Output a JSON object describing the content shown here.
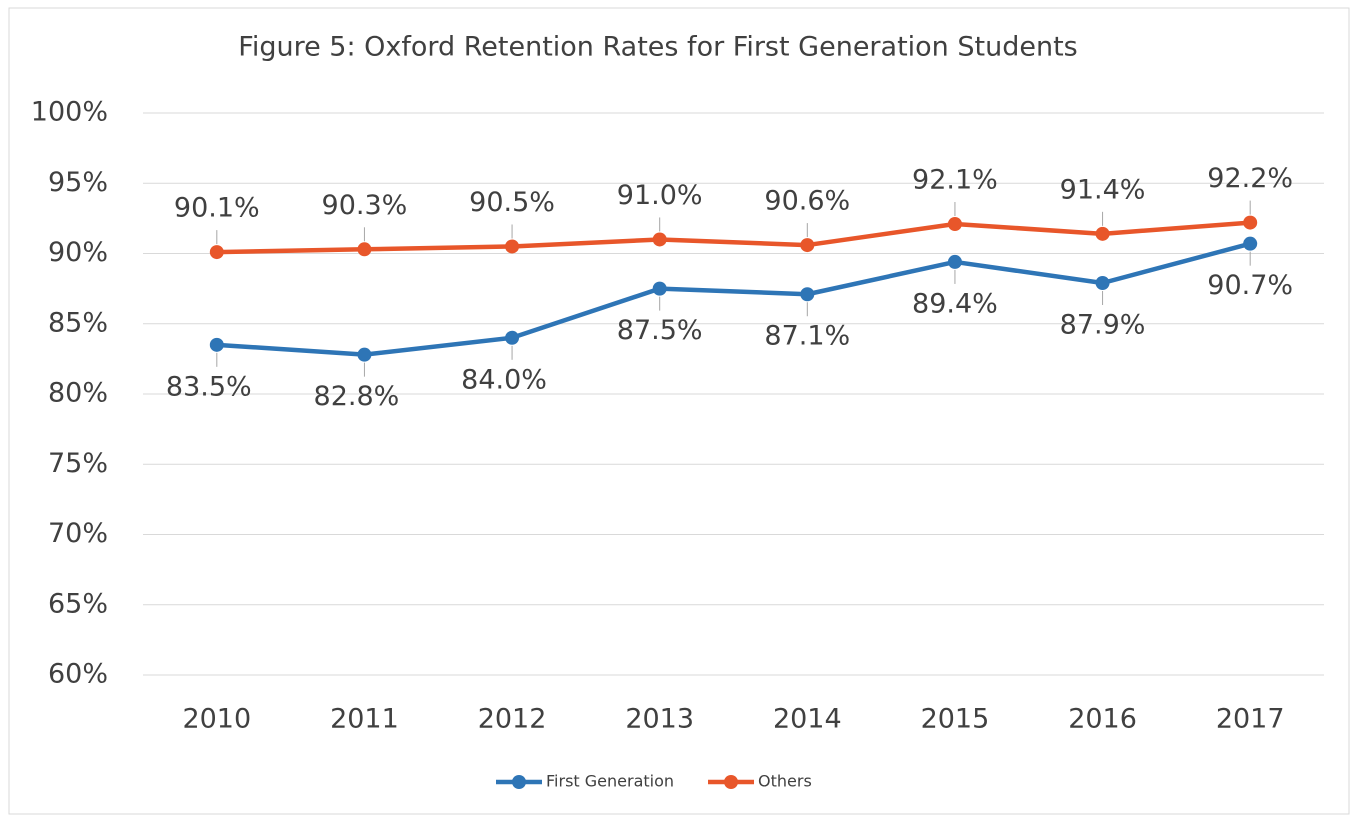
{
  "chart_data": {
    "type": "line",
    "title": "Figure 5: Oxford Retention Rates for First Generation Students",
    "categories": [
      "2010",
      "2011",
      "2012",
      "2013",
      "2014",
      "2015",
      "2016",
      "2017"
    ],
    "series": [
      {
        "name": "First Generation",
        "color": "#2e75b6",
        "values": [
          83.5,
          82.8,
          84.0,
          87.5,
          87.1,
          89.4,
          87.9,
          90.7
        ],
        "value_labels": [
          "83.5%",
          "82.8%",
          "84.0%",
          "87.5%",
          "87.1%",
          "89.4%",
          "87.9%",
          "90.7%"
        ]
      },
      {
        "name": "Others",
        "color": "#e8562a",
        "values": [
          90.1,
          90.3,
          90.5,
          91.0,
          90.6,
          92.1,
          91.4,
          92.2
        ],
        "value_labels": [
          "90.1%",
          "90.3%",
          "90.5%",
          "91.0%",
          "90.6%",
          "92.1%",
          "91.4%",
          "92.2%"
        ]
      }
    ],
    "ylim": [
      60,
      100
    ],
    "yticks": [
      {
        "value": 60,
        "label": "60%"
      },
      {
        "value": 65,
        "label": "65%"
      },
      {
        "value": 70,
        "label": "70%"
      },
      {
        "value": 75,
        "label": "75%"
      },
      {
        "value": 80,
        "label": "80%"
      },
      {
        "value": 85,
        "label": "85%"
      },
      {
        "value": 90,
        "label": "90%"
      },
      {
        "value": 95,
        "label": "95%"
      },
      {
        "value": 100,
        "label": "100%"
      }
    ],
    "grid": true,
    "legend": "bottom"
  }
}
